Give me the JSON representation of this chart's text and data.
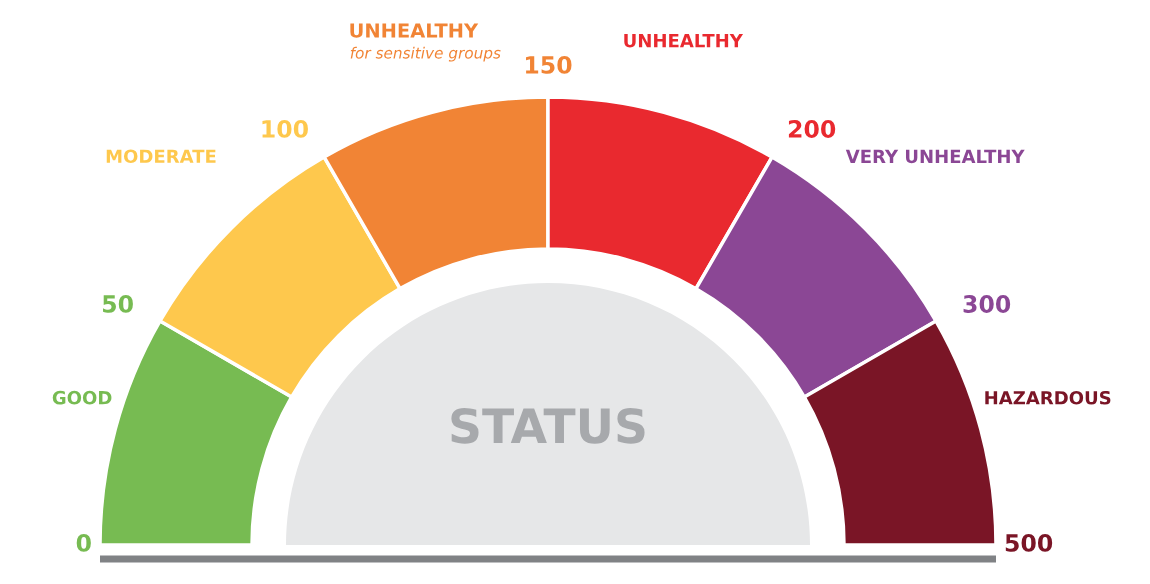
{
  "chart_data": {
    "type": "donut",
    "categories": [
      "GOOD",
      "MODERATE",
      "UNHEALTHY for sensitive groups",
      "UNHEALTHY",
      "VERY UNHEALTHY",
      "HAZARDOUS"
    ],
    "values": [
      16.67,
      16.67,
      16.66,
      16.67,
      16.67,
      16.66
    ],
    "colors": [
      "#77bb52",
      "#fec84d",
      "#f18435",
      "#e9292f",
      "#8b4795",
      "#7a1526"
    ],
    "annotations": [
      "0",
      "50",
      "100",
      "150",
      "200",
      "300",
      "500",
      "STATUS"
    ],
    "legend": false
  }
}
